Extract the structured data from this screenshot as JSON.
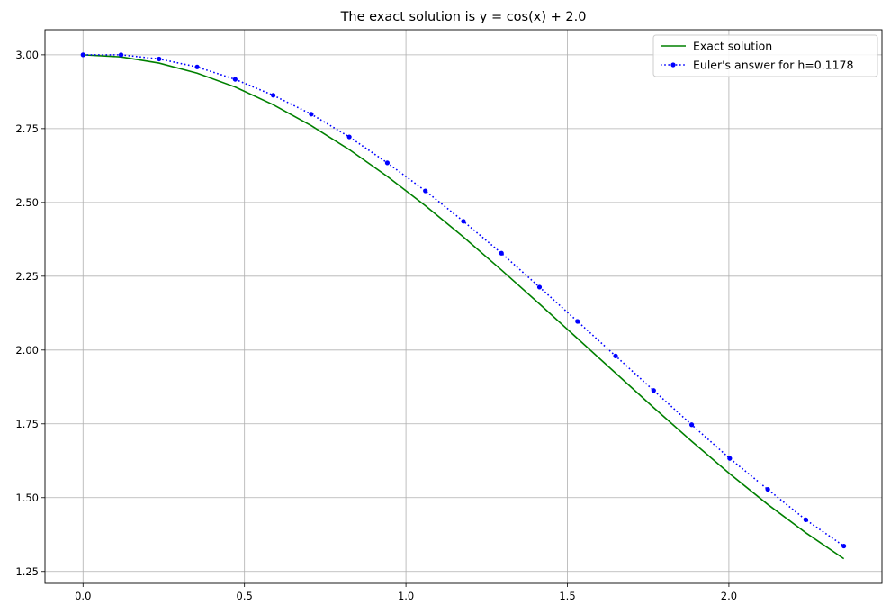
{
  "chart_data": {
    "type": "line",
    "title": "The exact solution is y = cos(x) + 2.0",
    "xlabel": "",
    "ylabel": "",
    "xlim": [
      -0.1178,
      2.474
    ],
    "ylim": [
      1.2096,
      3.085
    ],
    "grid": true,
    "legend_position": "top-right",
    "x_ticks": [
      "0.0",
      "0.5",
      "1.0",
      "1.5",
      "2.0"
    ],
    "y_ticks": [
      "1.25",
      "1.50",
      "1.75",
      "2.00",
      "2.25",
      "2.50",
      "2.75",
      "3.00"
    ],
    "series": [
      {
        "name": "Exact solution",
        "color": "#008000",
        "style": "solid",
        "marker": "none",
        "x": [
          0.0,
          0.1178,
          0.2356,
          0.3534,
          0.4712,
          0.589,
          0.7068,
          0.8246,
          0.9424,
          1.0602,
          1.178,
          1.2958,
          1.4136,
          1.5314,
          1.6492,
          1.767,
          1.8848,
          2.0026,
          2.1204,
          2.2382,
          2.356
        ],
        "y": [
          3.0,
          2.993,
          2.972,
          2.938,
          2.891,
          2.831,
          2.76,
          2.679,
          2.588,
          2.489,
          2.383,
          2.271,
          2.156,
          2.039,
          1.922,
          1.805,
          1.691,
          1.581,
          1.477,
          1.381,
          1.293
        ]
      },
      {
        "name": "Euler's answer for h=0.1178",
        "color": "#0000ff",
        "style": "dotted",
        "marker": "circle",
        "x": [
          0.0,
          0.1178,
          0.2356,
          0.3534,
          0.4712,
          0.589,
          0.7068,
          0.8246,
          0.9424,
          1.0602,
          1.178,
          1.2958,
          1.4136,
          1.5314,
          1.6492,
          1.767,
          1.8848,
          2.0026,
          2.1204,
          2.2382,
          2.356
        ],
        "y": [
          3.0,
          3.0,
          2.986,
          2.959,
          2.917,
          2.863,
          2.799,
          2.722,
          2.634,
          2.539,
          2.436,
          2.328,
          2.213,
          2.097,
          1.98,
          1.863,
          1.747,
          1.633,
          1.528,
          1.425,
          1.336
        ]
      }
    ]
  }
}
